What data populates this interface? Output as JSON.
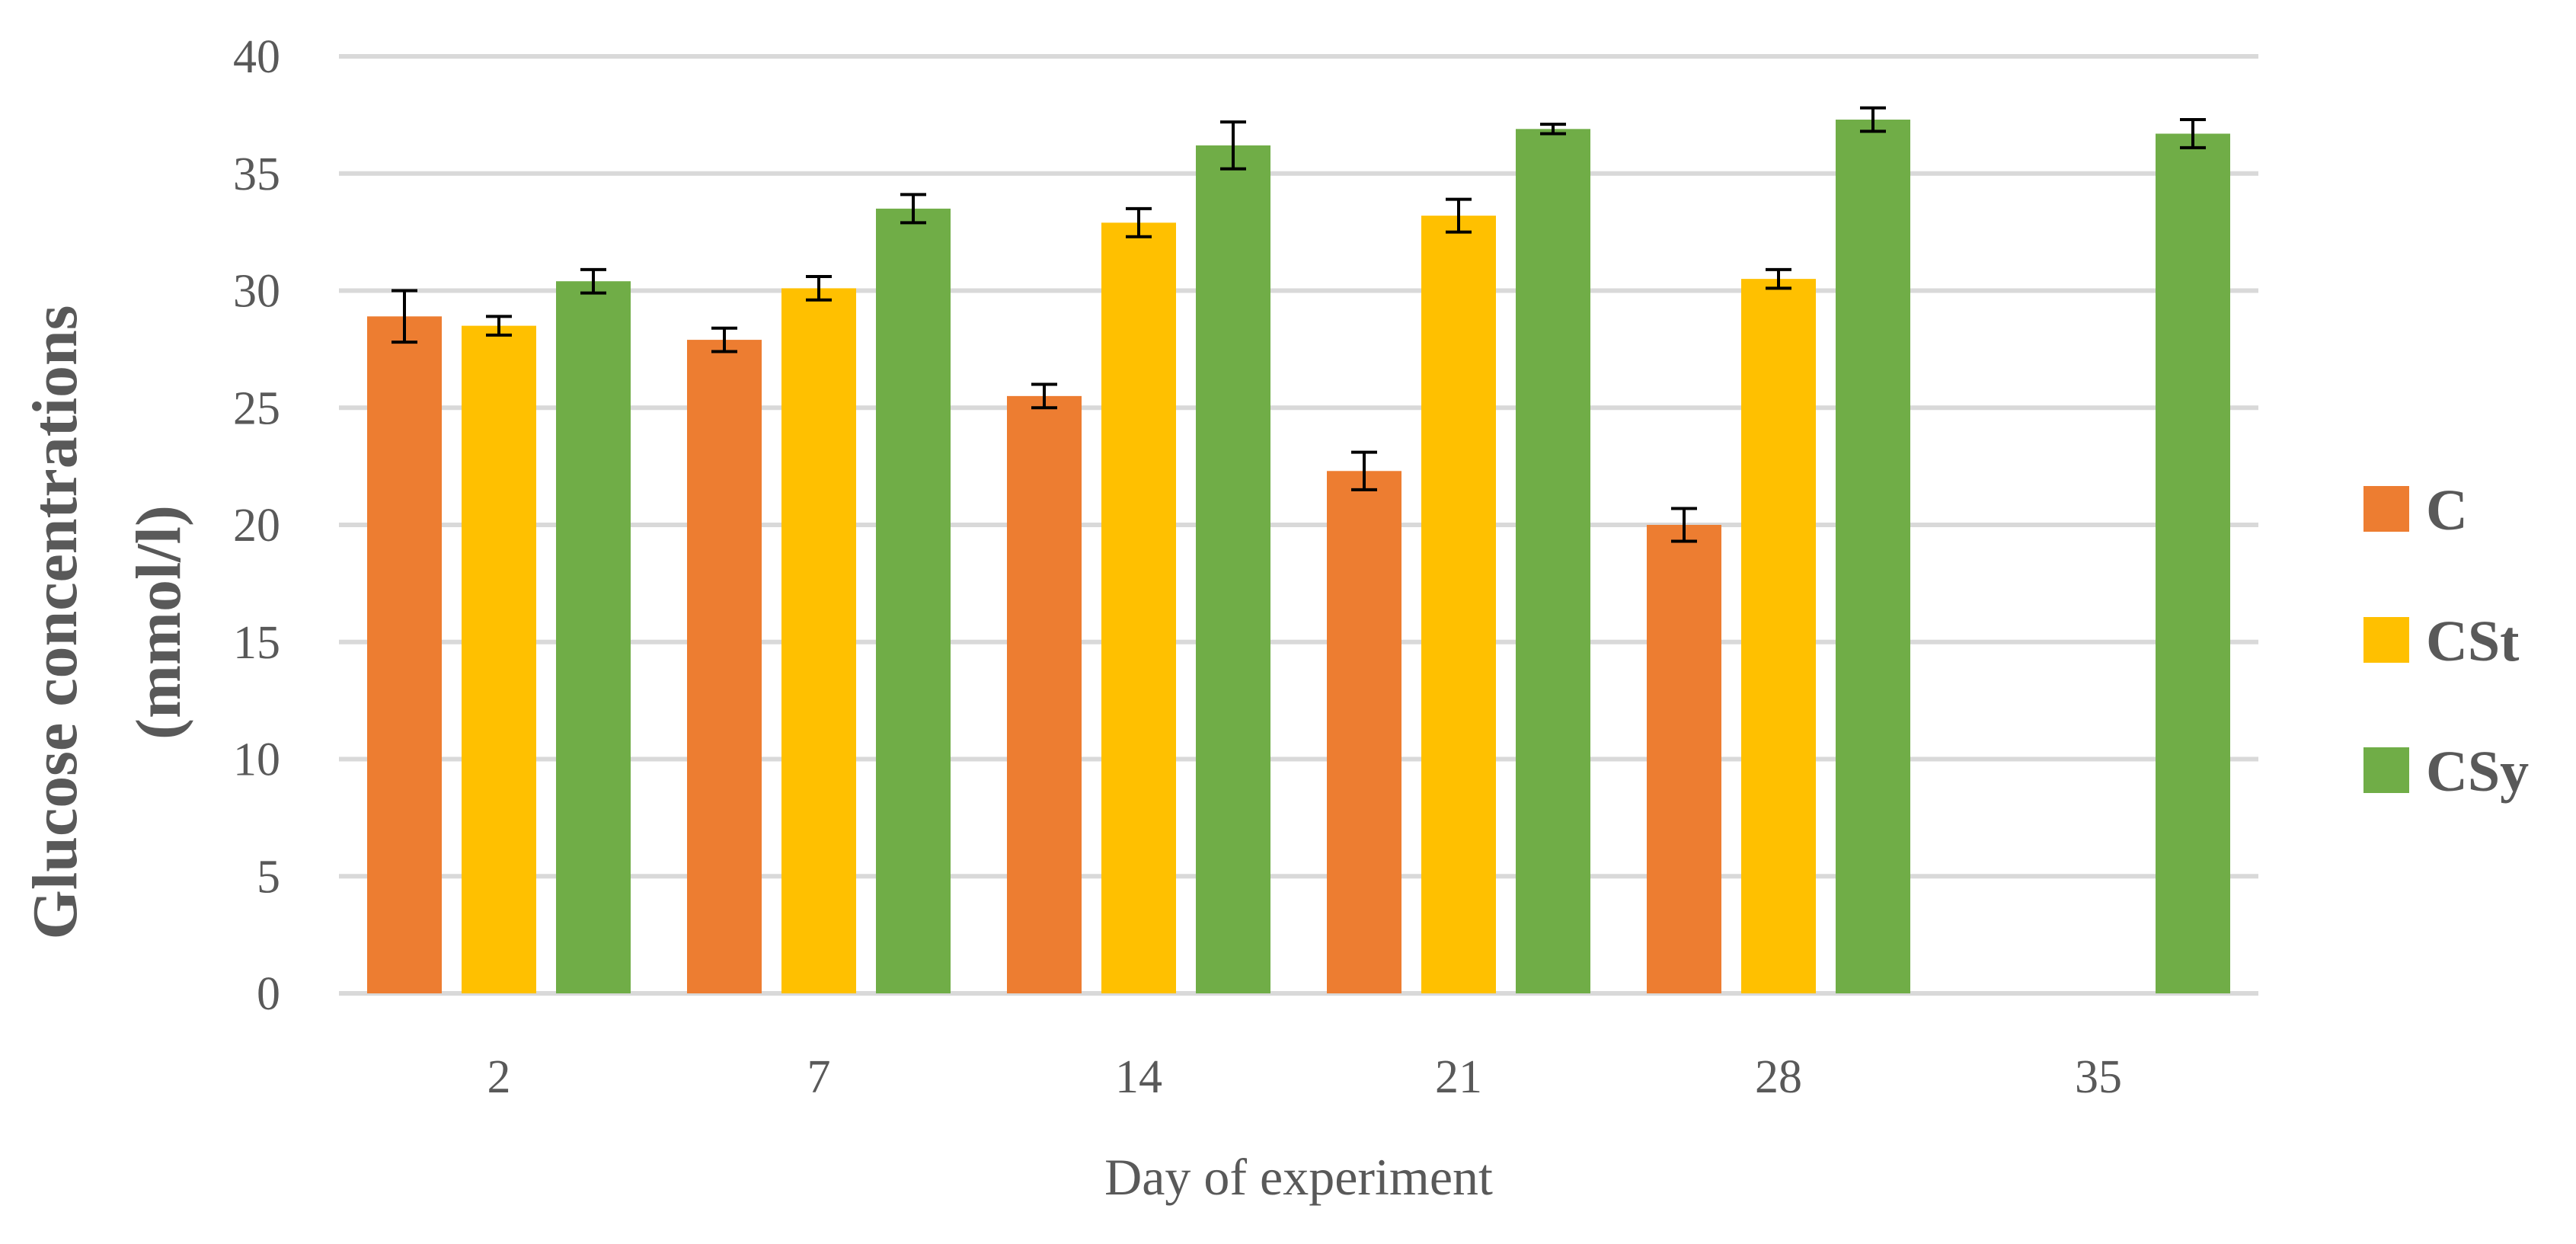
{
  "chart_data": {
    "type": "bar",
    "title": "",
    "xlabel": "Day of experiment",
    "ylabel_lines": [
      "Glucose concentrations",
      "(mmol/l)"
    ],
    "categories": [
      "2",
      "7",
      "14",
      "21",
      "28",
      "35"
    ],
    "ylim": [
      0,
      40
    ],
    "yticks": [
      0,
      5,
      10,
      15,
      20,
      25,
      30,
      35,
      40
    ],
    "grid": true,
    "legend_position": "right",
    "series": [
      {
        "name": "C",
        "color": "#ED7D31",
        "values": [
          28.9,
          27.9,
          25.5,
          22.3,
          20.0,
          null
        ],
        "errors": [
          1.1,
          0.5,
          0.5,
          0.8,
          0.7,
          null
        ]
      },
      {
        "name": "CSt",
        "color": "#FFC000",
        "values": [
          28.5,
          30.1,
          32.9,
          33.2,
          30.5,
          null
        ],
        "errors": [
          0.4,
          0.5,
          0.6,
          0.7,
          0.4,
          null
        ]
      },
      {
        "name": "CSy",
        "color": "#70AD47",
        "values": [
          30.4,
          33.5,
          36.2,
          36.9,
          37.3,
          36.7
        ],
        "errors": [
          0.5,
          0.6,
          1.0,
          0.2,
          0.5,
          0.6
        ]
      }
    ]
  }
}
